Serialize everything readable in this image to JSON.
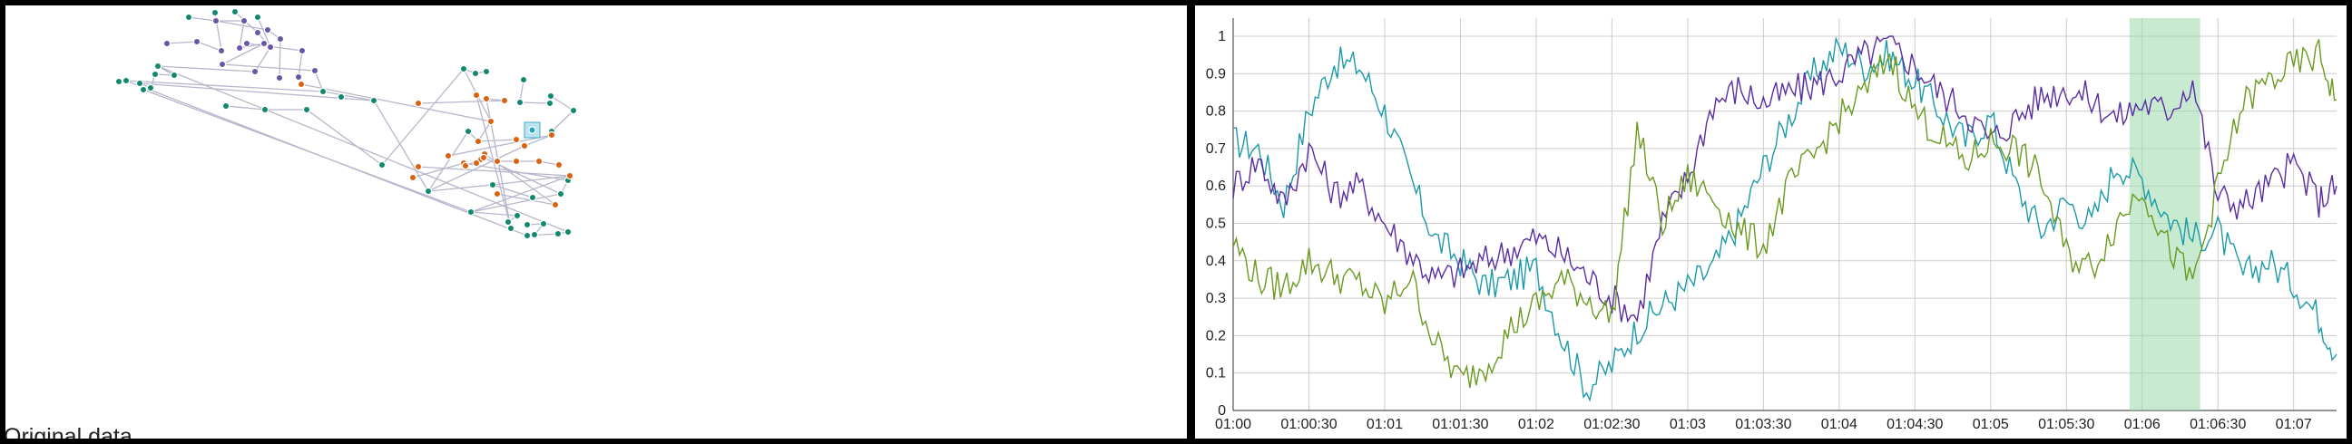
{
  "caption": "Original data",
  "colors": {
    "series": [
      "#1b9aaa",
      "#5a2da3",
      "#6a9a1f"
    ],
    "network_nodes": {
      "teal": "#10896f",
      "purple": "#6a55a8",
      "orange": "#d9620f"
    },
    "edge": "#b7b7cc",
    "brush": "#9ad9a9",
    "grid": "#cccccc"
  },
  "chart_data": [
    {
      "type": "network",
      "node_groups": [
        "teal",
        "purple",
        "orange"
      ],
      "node_counts": {
        "teal": 44,
        "purple": 18,
        "orange": 21
      },
      "has_selected_node": true
    },
    {
      "type": "line",
      "x_tick_labels": [
        "01:00",
        "01:00:30",
        "01:01",
        "01:01:30",
        "01:02",
        "01:02:30",
        "01:03",
        "01:03:30",
        "01:04",
        "01:04:30",
        "01:05",
        "01:05:30",
        "01:06",
        "01:06:30",
        "01:07"
      ],
      "y_tick_labels": [
        "0",
        "0.1",
        "0.2",
        "0.3",
        "0.4",
        "0.5",
        "0.6",
        "0.7",
        "0.8",
        "0.9",
        "1"
      ],
      "xlim_seconds": [
        0,
        437
      ],
      "ylim": [
        0,
        1
      ],
      "brush_seconds": [
        355,
        383
      ],
      "grid": true,
      "series": [
        {
          "color": "#1b9aaa",
          "t": [
            0,
            10,
            20,
            30,
            40,
            50,
            60,
            70,
            80,
            90,
            100,
            110,
            120,
            130,
            140,
            150,
            160,
            170,
            180,
            190,
            200,
            210,
            220,
            230,
            240,
            250,
            260,
            270,
            280,
            290,
            300,
            310,
            320,
            330,
            340,
            350,
            360,
            370,
            380,
            390,
            400,
            410,
            420,
            430,
            437
          ],
          "values": [
            0.72,
            0.7,
            0.55,
            0.8,
            0.93,
            0.92,
            0.8,
            0.62,
            0.46,
            0.4,
            0.33,
            0.35,
            0.38,
            0.2,
            0.06,
            0.12,
            0.22,
            0.28,
            0.33,
            0.38,
            0.5,
            0.65,
            0.78,
            0.9,
            0.97,
            0.92,
            0.95,
            0.88,
            0.8,
            0.72,
            0.78,
            0.6,
            0.48,
            0.56,
            0.5,
            0.66,
            0.62,
            0.52,
            0.46,
            0.48,
            0.36,
            0.4,
            0.34,
            0.25,
            0.15
          ]
        },
        {
          "color": "#5a2da3",
          "t": [
            0,
            10,
            20,
            30,
            40,
            50,
            60,
            70,
            80,
            90,
            100,
            110,
            120,
            130,
            140,
            150,
            160,
            170,
            180,
            190,
            200,
            210,
            220,
            230,
            240,
            250,
            260,
            270,
            280,
            290,
            300,
            310,
            320,
            330,
            340,
            350,
            360,
            370,
            380,
            390,
            400,
            410,
            420,
            430,
            437
          ],
          "values": [
            0.6,
            0.67,
            0.55,
            0.7,
            0.58,
            0.6,
            0.5,
            0.42,
            0.35,
            0.37,
            0.4,
            0.43,
            0.46,
            0.42,
            0.36,
            0.3,
            0.25,
            0.5,
            0.62,
            0.82,
            0.86,
            0.82,
            0.85,
            0.87,
            0.9,
            0.95,
            0.98,
            0.92,
            0.85,
            0.8,
            0.72,
            0.78,
            0.84,
            0.86,
            0.83,
            0.78,
            0.82,
            0.8,
            0.88,
            0.57,
            0.55,
            0.6,
            0.66,
            0.56,
            0.6
          ]
        },
        {
          "color": "#6a9a1f",
          "t": [
            0,
            10,
            20,
            30,
            40,
            50,
            60,
            70,
            80,
            90,
            100,
            110,
            120,
            130,
            140,
            150,
            160,
            170,
            180,
            190,
            200,
            210,
            220,
            230,
            240,
            250,
            260,
            270,
            280,
            290,
            300,
            310,
            320,
            330,
            340,
            350,
            360,
            370,
            380,
            390,
            400,
            410,
            420,
            430,
            437
          ],
          "values": [
            0.45,
            0.35,
            0.33,
            0.4,
            0.36,
            0.34,
            0.28,
            0.36,
            0.18,
            0.08,
            0.12,
            0.22,
            0.28,
            0.35,
            0.3,
            0.25,
            0.75,
            0.5,
            0.62,
            0.57,
            0.48,
            0.44,
            0.6,
            0.68,
            0.78,
            0.85,
            0.95,
            0.8,
            0.73,
            0.66,
            0.72,
            0.7,
            0.62,
            0.42,
            0.38,
            0.5,
            0.6,
            0.44,
            0.34,
            0.6,
            0.82,
            0.88,
            0.92,
            0.95,
            0.83
          ]
        }
      ]
    }
  ]
}
